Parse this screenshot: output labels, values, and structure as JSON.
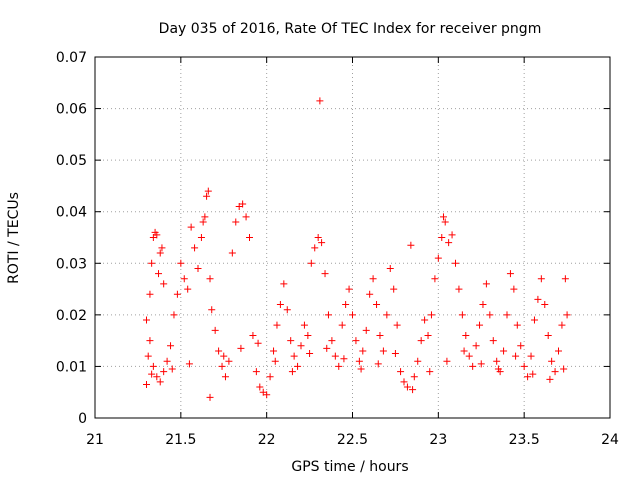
{
  "chart_data": {
    "type": "scatter",
    "title": "Day 035 of 2016, Rate Of TEC Index for receiver pngm",
    "xlabel": "GPS time / hours",
    "ylabel": "ROTI / TECUs",
    "xlim": [
      21,
      24
    ],
    "ylim": [
      0,
      0.07
    ],
    "grid": true,
    "marker": "+",
    "colors": {
      "points": "#ff0000",
      "grid": "#a0a0a0",
      "axis": "#000000",
      "background": "#ffffff"
    },
    "x_tick_labels": [
      "21",
      "21.5",
      "22",
      "22.5",
      "23",
      "23.5",
      "24"
    ],
    "y_tick_labels": [
      "0",
      "0.01",
      "0.02",
      "0.03",
      "0.04",
      "0.05",
      "0.06",
      "0.07"
    ],
    "series": [
      {
        "name": "ROTI",
        "points": [
          [
            21.3,
            0.0065
          ],
          [
            21.31,
            0.012
          ],
          [
            21.32,
            0.024
          ],
          [
            21.33,
            0.03
          ],
          [
            21.34,
            0.035
          ],
          [
            21.35,
            0.036
          ],
          [
            21.36,
            0.0355
          ],
          [
            21.37,
            0.028
          ],
          [
            21.38,
            0.032
          ],
          [
            21.39,
            0.033
          ],
          [
            21.4,
            0.026
          ],
          [
            21.3,
            0.019
          ],
          [
            21.32,
            0.015
          ],
          [
            21.34,
            0.01
          ],
          [
            21.36,
            0.008
          ],
          [
            21.38,
            0.007
          ],
          [
            21.4,
            0.009
          ],
          [
            21.42,
            0.011
          ],
          [
            21.44,
            0.014
          ],
          [
            21.46,
            0.02
          ],
          [
            21.48,
            0.024
          ],
          [
            21.5,
            0.03
          ],
          [
            21.52,
            0.027
          ],
          [
            21.54,
            0.025
          ],
          [
            21.56,
            0.037
          ],
          [
            21.58,
            0.033
          ],
          [
            21.6,
            0.029
          ],
          [
            21.62,
            0.035
          ],
          [
            21.63,
            0.038
          ],
          [
            21.64,
            0.039
          ],
          [
            21.65,
            0.043
          ],
          [
            21.66,
            0.044
          ],
          [
            21.67,
            0.027
          ],
          [
            21.68,
            0.021
          ],
          [
            21.7,
            0.017
          ],
          [
            21.72,
            0.013
          ],
          [
            21.74,
            0.01
          ],
          [
            21.76,
            0.008
          ],
          [
            21.78,
            0.011
          ],
          [
            21.8,
            0.032
          ],
          [
            21.82,
            0.038
          ],
          [
            21.84,
            0.041
          ],
          [
            21.86,
            0.0415
          ],
          [
            21.88,
            0.039
          ],
          [
            21.9,
            0.035
          ],
          [
            21.92,
            0.016
          ],
          [
            21.94,
            0.009
          ],
          [
            21.96,
            0.006
          ],
          [
            21.98,
            0.005
          ],
          [
            22.0,
            0.0045
          ],
          [
            22.02,
            0.008
          ],
          [
            22.04,
            0.013
          ],
          [
            22.06,
            0.018
          ],
          [
            22.08,
            0.022
          ],
          [
            22.1,
            0.026
          ],
          [
            22.12,
            0.021
          ],
          [
            22.14,
            0.015
          ],
          [
            22.16,
            0.012
          ],
          [
            22.18,
            0.01
          ],
          [
            22.2,
            0.014
          ],
          [
            22.22,
            0.018
          ],
          [
            22.24,
            0.016
          ],
          [
            22.26,
            0.03
          ],
          [
            22.28,
            0.033
          ],
          [
            22.3,
            0.035
          ],
          [
            22.32,
            0.034
          ],
          [
            22.31,
            0.0615
          ],
          [
            22.34,
            0.028
          ],
          [
            22.36,
            0.02
          ],
          [
            22.38,
            0.015
          ],
          [
            22.4,
            0.012
          ],
          [
            22.42,
            0.01
          ],
          [
            22.44,
            0.018
          ],
          [
            22.46,
            0.022
          ],
          [
            22.48,
            0.025
          ],
          [
            22.5,
            0.02
          ],
          [
            22.52,
            0.015
          ],
          [
            22.54,
            0.011
          ],
          [
            22.56,
            0.013
          ],
          [
            22.58,
            0.017
          ],
          [
            22.6,
            0.024
          ],
          [
            22.62,
            0.027
          ],
          [
            22.64,
            0.022
          ],
          [
            22.66,
            0.016
          ],
          [
            22.68,
            0.013
          ],
          [
            22.7,
            0.02
          ],
          [
            22.72,
            0.029
          ],
          [
            22.74,
            0.025
          ],
          [
            22.76,
            0.018
          ],
          [
            22.78,
            0.009
          ],
          [
            22.8,
            0.007
          ],
          [
            22.82,
            0.006
          ],
          [
            22.84,
            0.0335
          ],
          [
            22.86,
            0.008
          ],
          [
            22.88,
            0.011
          ],
          [
            22.9,
            0.015
          ],
          [
            22.92,
            0.019
          ],
          [
            22.94,
            0.016
          ],
          [
            22.96,
            0.02
          ],
          [
            22.98,
            0.027
          ],
          [
            23.0,
            0.031
          ],
          [
            23.02,
            0.035
          ],
          [
            23.03,
            0.039
          ],
          [
            23.04,
            0.038
          ],
          [
            23.06,
            0.034
          ],
          [
            23.08,
            0.0355
          ],
          [
            23.1,
            0.03
          ],
          [
            23.12,
            0.025
          ],
          [
            23.14,
            0.02
          ],
          [
            23.16,
            0.016
          ],
          [
            23.18,
            0.012
          ],
          [
            23.2,
            0.01
          ],
          [
            23.22,
            0.014
          ],
          [
            23.24,
            0.018
          ],
          [
            23.26,
            0.022
          ],
          [
            23.28,
            0.026
          ],
          [
            23.3,
            0.02
          ],
          [
            23.32,
            0.015
          ],
          [
            23.34,
            0.011
          ],
          [
            23.36,
            0.009
          ],
          [
            23.38,
            0.013
          ],
          [
            23.4,
            0.02
          ],
          [
            23.42,
            0.028
          ],
          [
            23.44,
            0.025
          ],
          [
            23.46,
            0.018
          ],
          [
            23.48,
            0.014
          ],
          [
            23.5,
            0.01
          ],
          [
            23.52,
            0.008
          ],
          [
            23.54,
            0.012
          ],
          [
            23.56,
            0.019
          ],
          [
            23.58,
            0.023
          ],
          [
            23.6,
            0.027
          ],
          [
            23.62,
            0.022
          ],
          [
            23.64,
            0.016
          ],
          [
            23.66,
            0.011
          ],
          [
            23.68,
            0.009
          ],
          [
            23.7,
            0.013
          ],
          [
            23.72,
            0.018
          ],
          [
            23.74,
            0.027
          ],
          [
            23.75,
            0.02
          ],
          [
            21.33,
            0.0085
          ],
          [
            21.45,
            0.0095
          ],
          [
            21.55,
            0.0105
          ],
          [
            21.67,
            0.004
          ],
          [
            21.75,
            0.012
          ],
          [
            21.85,
            0.0135
          ],
          [
            21.95,
            0.0145
          ],
          [
            22.05,
            0.011
          ],
          [
            22.15,
            0.009
          ],
          [
            22.25,
            0.0125
          ],
          [
            22.35,
            0.0135
          ],
          [
            22.45,
            0.0115
          ],
          [
            22.55,
            0.0095
          ],
          [
            22.65,
            0.0105
          ],
          [
            22.75,
            0.0125
          ],
          [
            22.85,
            0.0055
          ],
          [
            22.95,
            0.009
          ],
          [
            23.05,
            0.011
          ],
          [
            23.15,
            0.013
          ],
          [
            23.25,
            0.0105
          ],
          [
            23.35,
            0.0095
          ],
          [
            23.45,
            0.012
          ],
          [
            23.55,
            0.0085
          ],
          [
            23.65,
            0.0075
          ],
          [
            23.73,
            0.0095
          ]
        ]
      }
    ]
  }
}
